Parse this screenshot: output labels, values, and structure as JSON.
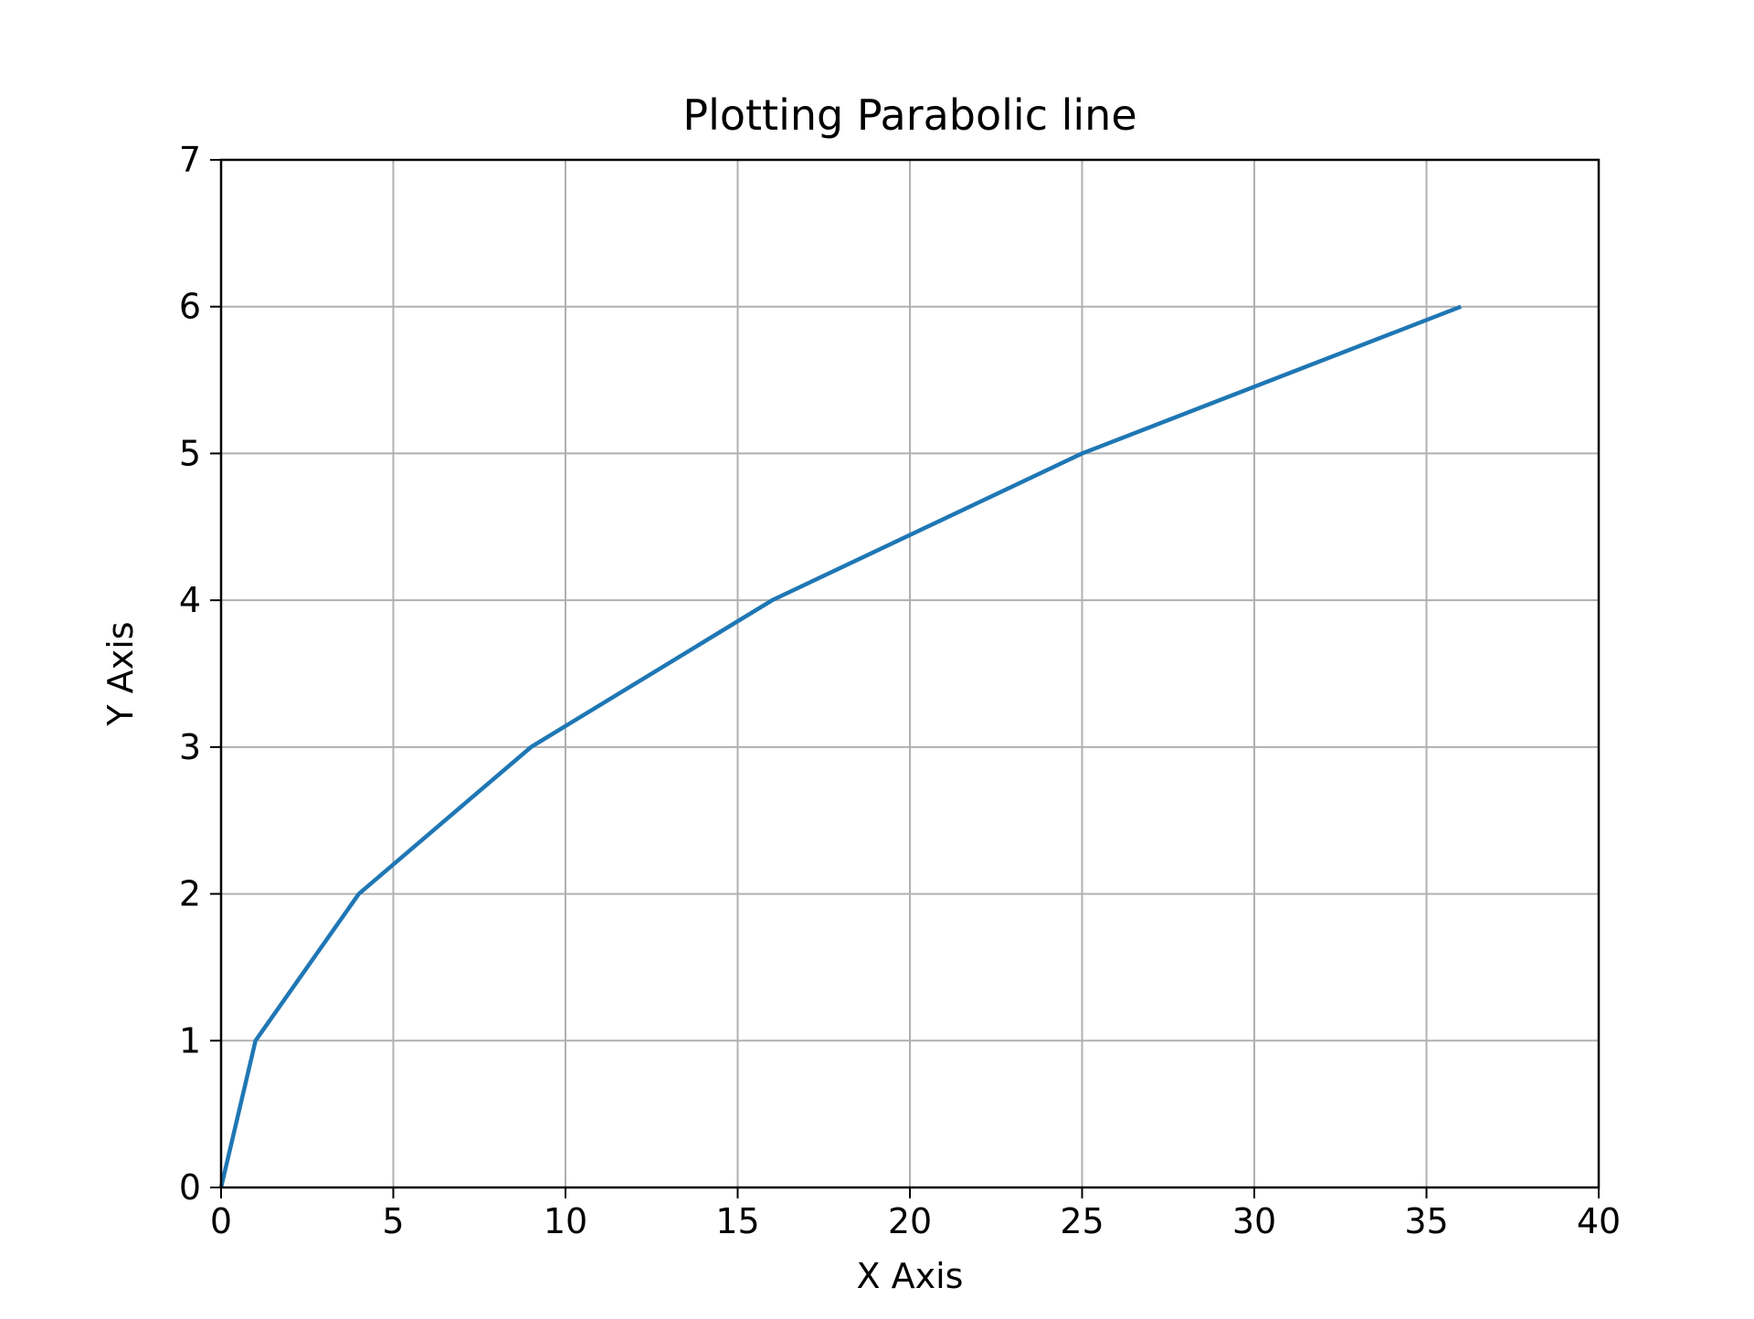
{
  "chart_data": {
    "type": "line",
    "title": "Plotting Parabolic line",
    "xlabel": "X Axis",
    "ylabel": "Y Axis",
    "xlim": [
      0,
      40
    ],
    "ylim": [
      0,
      7
    ],
    "xticks": [
      0,
      5,
      10,
      15,
      20,
      25,
      30,
      35,
      40
    ],
    "yticks": [
      0,
      1,
      2,
      3,
      4,
      5,
      6,
      7
    ],
    "grid": true,
    "series": [
      {
        "x": [
          0,
          1,
          4,
          9,
          16,
          25,
          36
        ],
        "y": [
          0,
          1,
          2,
          3,
          4,
          5,
          6
        ],
        "color": "#1f77b4"
      }
    ]
  }
}
